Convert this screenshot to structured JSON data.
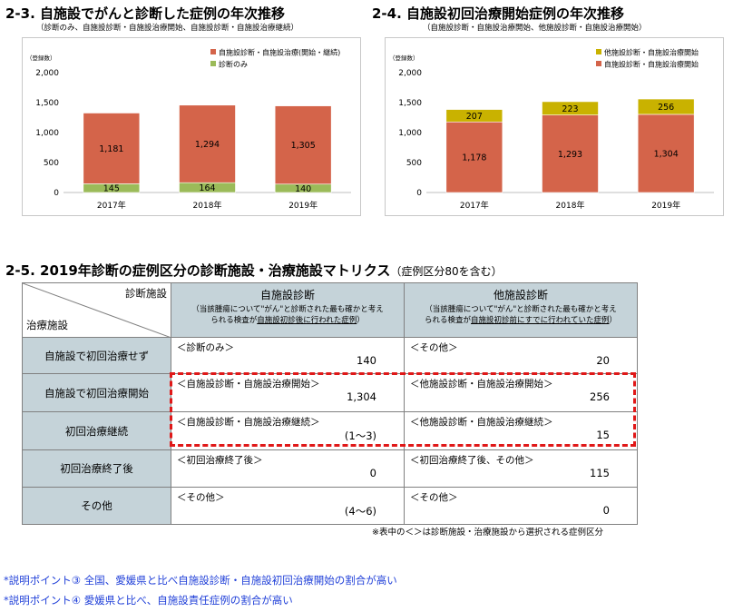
{
  "chart_data": [
    {
      "type": "bar",
      "stacked": true,
      "title": "2-3.  自施設でがんと診断した症例の年次推移",
      "subtitle": "（診断のみ、自施設診断・自施設治療開始、自施設診断・自施設治療継続）",
      "ylabel": "（登録数）",
      "ylim": [
        0,
        2000
      ],
      "yticks": [
        "0",
        "500",
        "1,000",
        "1,500",
        "2,000"
      ],
      "categories": [
        "2017年",
        "2018年",
        "2019年"
      ],
      "legend_position": "top-right",
      "series": [
        {
          "name": "診断のみ",
          "color": "#9bbb59",
          "values": [
            145,
            164,
            140
          ],
          "labels": [
            "145",
            "164",
            "140"
          ]
        },
        {
          "name": "自施設診断・自施設治療(開始・継続)",
          "color": "#d4644a",
          "values": [
            1181,
            1294,
            1305
          ],
          "labels": [
            "1,181",
            "1,294",
            "1,305"
          ]
        }
      ]
    },
    {
      "type": "bar",
      "stacked": true,
      "title": "2-4.  自施設初回治療開始症例の年次推移",
      "subtitle": "（自施設診断・自施設治療開始、他施設診断・自施設治療開始）",
      "ylabel": "（登録数）",
      "ylim": [
        0,
        2000
      ],
      "yticks": [
        "0",
        "500",
        "1,000",
        "1,500",
        "2,000"
      ],
      "categories": [
        "2017年",
        "2018年",
        "2019年"
      ],
      "legend_position": "top-right",
      "series": [
        {
          "name": "自施設診断・自施設治療開始",
          "color": "#d4644a",
          "values": [
            1178,
            1293,
            1304
          ],
          "labels": [
            "1,178",
            "1,293",
            "1,304"
          ]
        },
        {
          "name": "他施設診断・自施設治療開始",
          "color": "#c9b200",
          "values": [
            207,
            223,
            256
          ],
          "labels": [
            "207",
            "223",
            "256"
          ]
        }
      ]
    }
  ],
  "matrix": {
    "title": "2-5.  2019年診断の症例区分の診断施設・治療施設マトリクス",
    "title_note": "（症例区分80を含む）",
    "corner_top": "診断施設",
    "corner_bottom": "治療施設",
    "col1_title": "自施設診断",
    "col1_note1": "（当該腫瘍について\"がん\"と診断された最も確かと考え",
    "col1_note2_pre": "られる検査が",
    "col1_note2_u": "自施設初診後に行われた症例",
    "col1_note2_post": "）",
    "col2_title": "他施設診断",
    "col2_note1": "（当該腫瘍について\"がん\"と診断された最も確かと考え",
    "col2_note2_pre": "られる検査が",
    "col2_note2_u": "自施設初診前にすでに行われていた症例",
    "col2_note2_post": "）",
    "rows": [
      {
        "head": "自施設で初回治療せず",
        "c1_label": "＜診断のみ＞",
        "c1_value": "140",
        "c2_label": "＜その他＞",
        "c2_value": "20"
      },
      {
        "head": "自施設で初回治療開始",
        "c1_label": "＜自施設診断・自施設治療開始＞",
        "c1_value": "1,304",
        "c2_label": "＜他施設診断・自施設治療開始＞",
        "c2_value": "256"
      },
      {
        "head": "初回治療継続",
        "c1_label": "＜自施設診断・自施設治療継続＞",
        "c1_value": "(1～3)",
        "c2_label": "＜他施設診断・自施設治療継続＞",
        "c2_value": "15"
      },
      {
        "head": "初回治療終了後",
        "c1_label": "＜初回治療終了後＞",
        "c1_value": "0",
        "c2_label": "＜初回治療終了後、その他＞",
        "c2_value": "115"
      },
      {
        "head": "その他",
        "c1_label": "＜その他＞",
        "c1_value": "(4～6)",
        "c2_label": "＜その他＞",
        "c2_value": "0"
      }
    ],
    "footnote": "※表中の＜＞は診断施設・治療施設から選択される症例区分"
  },
  "points": [
    "*説明ポイント③   全国、愛媛県と比べ自施設診断・自施設初回治療開始の割合が高い",
    "*説明ポイント④   愛媛県と比べ、自施設責任症例の割合が高い"
  ],
  "colors": {
    "header_bg": "#c5d3d9",
    "highlight": "#e01818",
    "points_text": "#1f3fd8"
  }
}
